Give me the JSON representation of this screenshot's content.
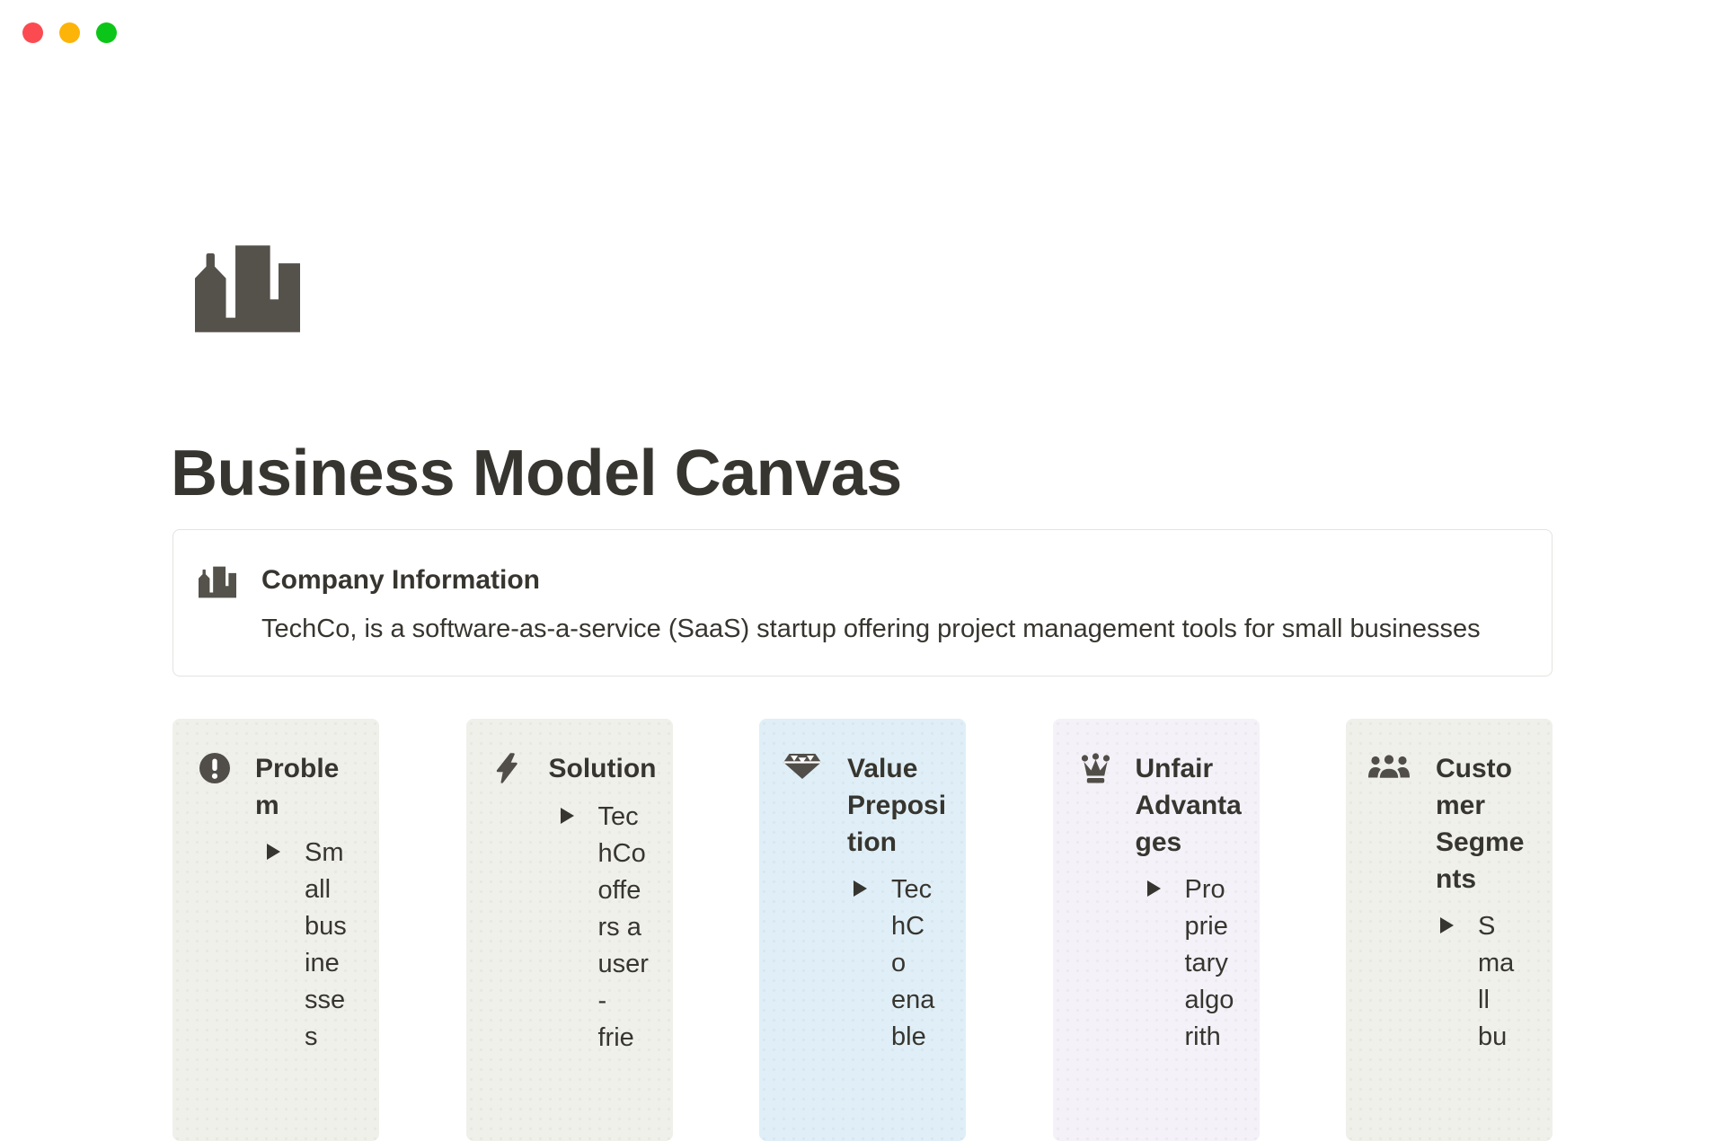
{
  "window": {
    "traffic_lights": {
      "close_color": "#FB4B51",
      "minimize_color": "#FDB408",
      "zoom_color": "#0BC618"
    }
  },
  "page": {
    "page_icon": "city-buildings",
    "title": "Business Model Canvas",
    "callout": {
      "icon": "city-buildings",
      "title": "Company Information",
      "body": "TechCo, is a software-as-a-service (SaaS) startup offering project management tools for small businesses"
    },
    "cards": [
      {
        "title": "Problem",
        "title_lines": [
          "Proble",
          "m"
        ],
        "icon": "exclamation-circle",
        "background": "#F0F0EB",
        "items": [
          {
            "text": "Small businesses",
            "lines": [
              "Sm",
              "all",
              "bus",
              "ine",
              "sse",
              "s"
            ]
          }
        ]
      },
      {
        "title": "Solution",
        "title_lines": [
          "Solution"
        ],
        "icon": "lightning-bolt",
        "background": "#F0F0EB",
        "items": [
          {
            "text": "TechCo offers a user-frie",
            "lines": [
              "Tec",
              "hCo",
              "offe",
              "rs a",
              "user",
              "-",
              "frie"
            ]
          }
        ]
      },
      {
        "title": "Value Preposition",
        "title_lines": [
          "Value",
          "Preposi",
          "tion"
        ],
        "icon": "gem",
        "background": "#E0EFF7",
        "items": [
          {
            "text": "TechCo enable",
            "lines": [
              "Tec",
              "hC",
              "o",
              "ena",
              "ble"
            ]
          }
        ]
      },
      {
        "title": "Unfair Advantages",
        "title_lines": [
          "Unfair",
          "Advanta",
          "ges"
        ],
        "icon": "crown",
        "background": "#F4F1F8",
        "items": [
          {
            "text": "Proprietary algorith",
            "lines": [
              "Pro",
              "prie",
              "tary",
              "algo",
              "rith"
            ]
          }
        ]
      },
      {
        "title": "Customer Segments",
        "title_lines": [
          "Custo",
          "mer",
          "Segme",
          "nts"
        ],
        "icon": "people-group",
        "background": "#EFF0EA",
        "items": [
          {
            "text": "Small bu",
            "lines": [
              "S",
              "ma",
              "ll",
              "bu"
            ]
          }
        ]
      }
    ]
  }
}
